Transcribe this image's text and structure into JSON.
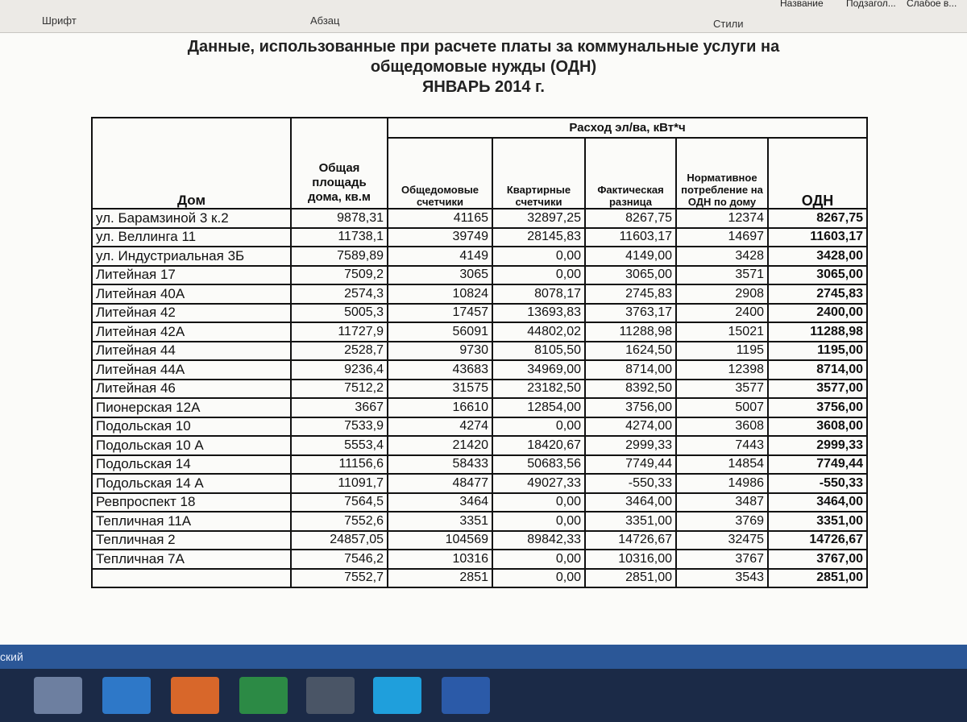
{
  "ribbon": {
    "groups": [
      "Шрифт",
      "Абзац",
      "Стили"
    ],
    "styles": [
      "Название",
      "Подзагол...",
      "Слабое в..."
    ]
  },
  "document": {
    "title": [
      "Данные, использованные при  расчете платы за коммунальные услуги на",
      "общедомовые нужды (ОДН)",
      "ЯНВАРЬ 2014 г."
    ],
    "table": {
      "header": {
        "house": "Дом",
        "area": "Общая площадь дома, кв.м",
        "group": "Расход эл/ва, кВт*ч",
        "columns": [
          "Общедомовые счетчики",
          "Квартирные счетчики",
          "Фактическая разница",
          "Нормативное потребление на ОДН по дому",
          "ОДН"
        ]
      },
      "rows": [
        [
          "ул. Барамзиной 3 к.2",
          "9878,31",
          "41165",
          "32897,25",
          "8267,75",
          "12374",
          "8267,75"
        ],
        [
          "ул. Веллинга 11",
          "11738,1",
          "39749",
          "28145,83",
          "11603,17",
          "14697",
          "11603,17"
        ],
        [
          "ул. Индустриальная 3Б",
          "7589,89",
          "4149",
          "0,00",
          "4149,00",
          "3428",
          "3428,00"
        ],
        [
          "Литейная 17",
          "7509,2",
          "3065",
          "0,00",
          "3065,00",
          "3571",
          "3065,00"
        ],
        [
          "Литейная 40А",
          "2574,3",
          "10824",
          "8078,17",
          "2745,83",
          "2908",
          "2745,83"
        ],
        [
          "Литейная 42",
          "5005,3",
          "17457",
          "13693,83",
          "3763,17",
          "2400",
          "2400,00"
        ],
        [
          "Литейная 42А",
          "11727,9",
          "56091",
          "44802,02",
          "11288,98",
          "15021",
          "11288,98"
        ],
        [
          "Литейная 44",
          "2528,7",
          "9730",
          "8105,50",
          "1624,50",
          "1195",
          "1195,00"
        ],
        [
          "Литейная 44А",
          "9236,4",
          "43683",
          "34969,00",
          "8714,00",
          "12398",
          "8714,00"
        ],
        [
          "Литейная 46",
          "7512,2",
          "31575",
          "23182,50",
          "8392,50",
          "3577",
          "3577,00"
        ],
        [
          "Пионерская 12А",
          "3667",
          "16610",
          "12854,00",
          "3756,00",
          "5007",
          "3756,00"
        ],
        [
          "Подольская 10",
          "7533,9",
          "4274",
          "0,00",
          "4274,00",
          "3608",
          "3608,00"
        ],
        [
          "Подольская 10 А",
          "5553,4",
          "21420",
          "18420,67",
          "2999,33",
          "7443",
          "2999,33"
        ],
        [
          "Подольская 14",
          "11156,6",
          "58433",
          "50683,56",
          "7749,44",
          "14854",
          "7749,44"
        ],
        [
          "Подольская 14 А",
          "11091,7",
          "48477",
          "49027,33",
          "-550,33",
          "14986",
          "-550,33"
        ],
        [
          "Ревпроспект 18",
          "7564,5",
          "3464",
          "0,00",
          "3464,00",
          "3487",
          "3464,00"
        ],
        [
          "Тепличная 11А",
          "7552,6",
          "3351",
          "0,00",
          "3351,00",
          "3769",
          "3351,00"
        ],
        [
          "Тепличная 2",
          "24857,05",
          "104569",
          "89842,33",
          "14726,67",
          "32475",
          "14726,67"
        ],
        [
          "Тепличная 7А",
          "7546,2",
          "10316",
          "0,00",
          "10316,00",
          "3767",
          "3767,00"
        ],
        [
          null,
          "7552,7",
          "2851",
          "0,00",
          "2851,00",
          "3543",
          "2851,00"
        ]
      ]
    }
  },
  "status_bar": {
    "text": "ский"
  }
}
